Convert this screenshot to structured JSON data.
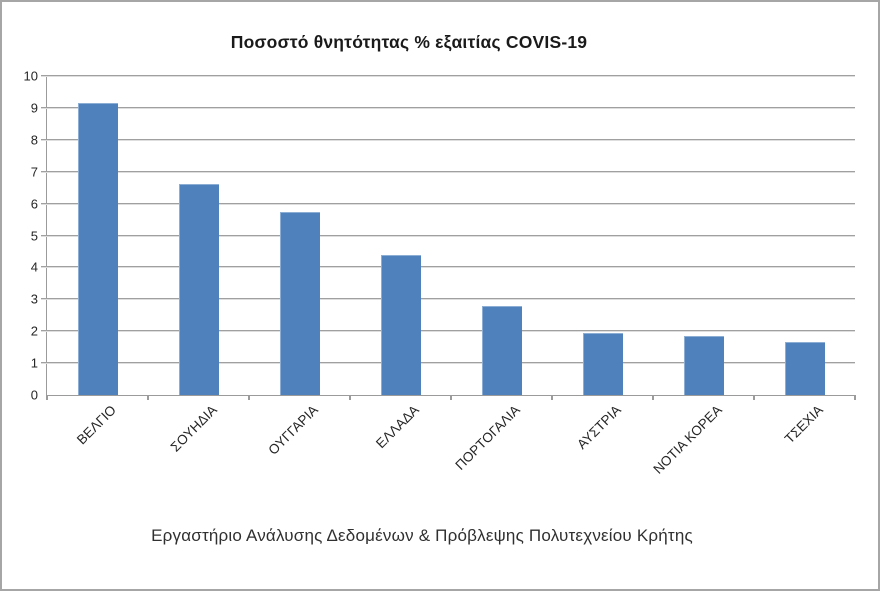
{
  "figure": {
    "title": "Ποσοστό θνητότητας % εξαιτίας  COVIS-19",
    "caption": "Εργαστήριο Ανάλυσης Δεδομένων & Πρόβλεψης Πολυτεχνείου Κρήτης"
  },
  "chart_data": {
    "type": "bar",
    "title": "Ποσοστό θνητότητας % εξαιτίας  COVIS-19",
    "categories": [
      "ΒΕΛΓΙΟ",
      "ΣΟΥΗΔΙΑ",
      "ΟΥΓΓΑΡΙΑ",
      "ΕΛΛΑΔΑ",
      "ΠΟΡΤΟΓΑΛΙΑ",
      "ΑΥΣΤΡΙΑ",
      "ΝΟΤΙΑ ΚΟΡΕΑ",
      "ΤΣΕΧΙΑ"
    ],
    "values": [
      9.15,
      6.6,
      5.75,
      4.4,
      2.8,
      1.95,
      1.85,
      1.65
    ],
    "xlabel": "",
    "ylabel": "",
    "ylim": [
      0,
      10
    ],
    "ytick_step": 1,
    "ytick_labels": [
      "0",
      "1",
      "2",
      "3",
      "4",
      "5",
      "6",
      "7",
      "8",
      "9",
      "10"
    ],
    "grid": true,
    "legend": false,
    "caption": "Εργαστήριο Ανάλυσης Δεδομένων & Πρόβλεψης Πολυτεχνείου Κρήτης",
    "colors": {
      "bar": "#4f81bd",
      "gridline": "#a6a6a6",
      "axis": "#9b9b9b",
      "text": "#262626",
      "border": "#a6a6a6"
    }
  }
}
